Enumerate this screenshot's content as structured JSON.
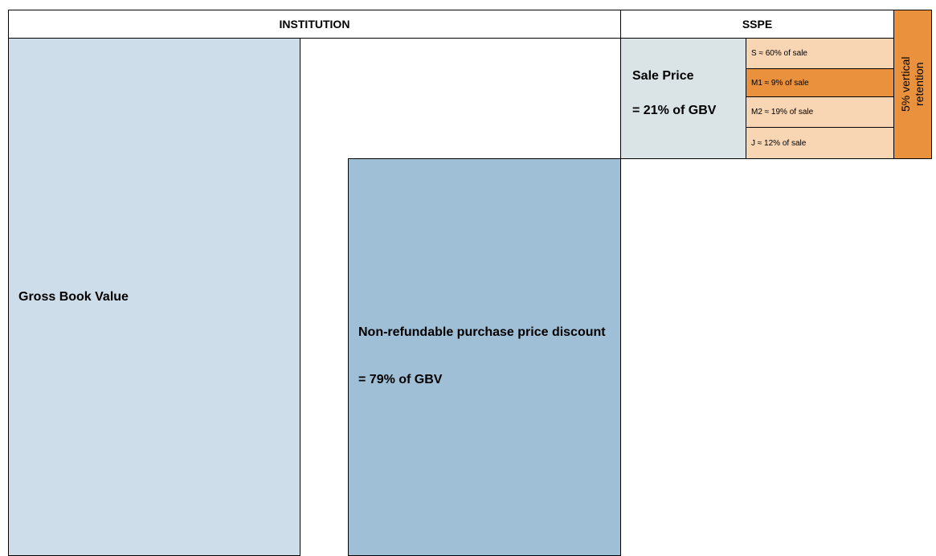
{
  "header": {
    "institution": "INSTITUTION",
    "sspe": "SSPE"
  },
  "gross_book_value": {
    "label": "Gross Book Value"
  },
  "discount": {
    "label": "Non-refundable purchase price discount",
    "share": "= 79% of GBV"
  },
  "sale_price": {
    "label": "Sale Price",
    "share": "= 21% of GBV"
  },
  "tranches": [
    "S ≈ 60% of sale",
    "M1 ≈ 9% of sale",
    "M2 ≈ 19% of sale",
    "J ≈ 12% of sale"
  ],
  "retention": "5% vertical retention"
}
